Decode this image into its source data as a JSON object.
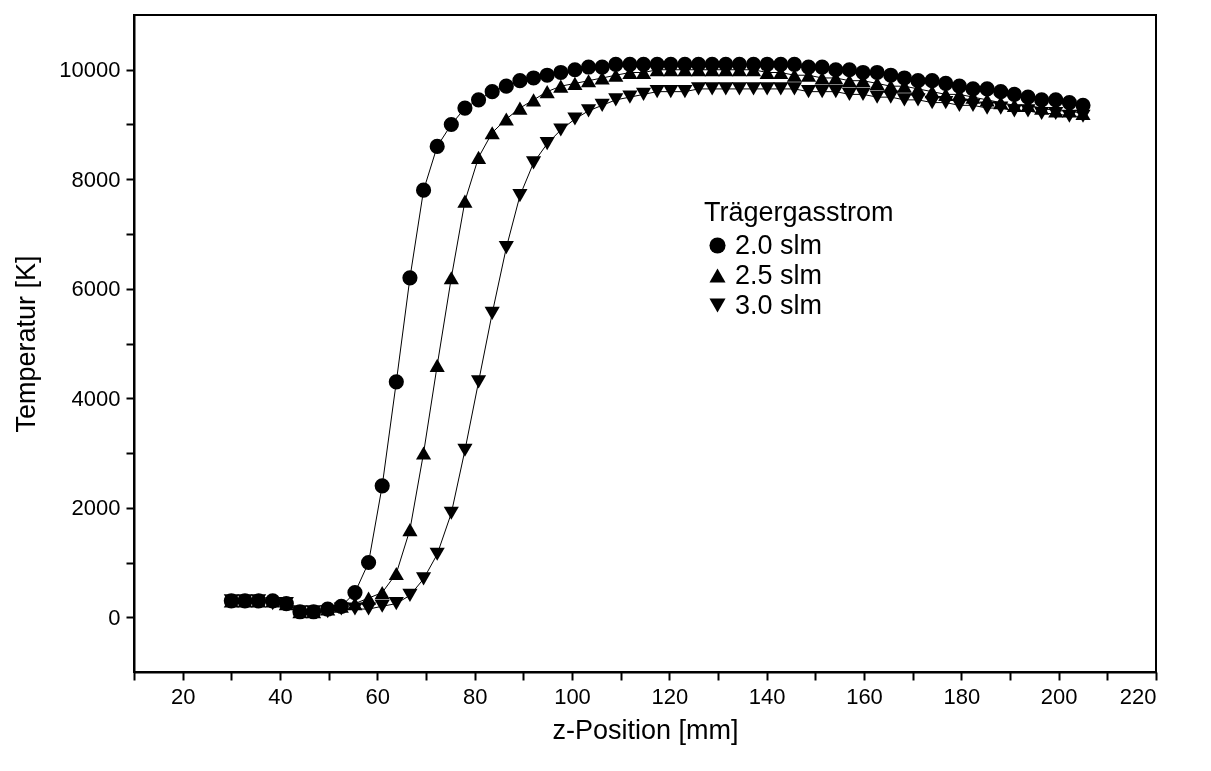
{
  "chart_data": {
    "type": "line",
    "xlabel": "z-Position [mm]",
    "ylabel": "Temperatur [K]",
    "legend_title": "Trägergasstrom",
    "legend": "right",
    "grid": false,
    "line_style": "solid",
    "x": [
      30,
      32.8,
      35.6,
      38.5,
      41.3,
      44.1,
      46.9,
      49.8,
      52.6,
      55.4,
      58.2,
      61.0,
      63.9,
      66.7,
      69.5,
      72.3,
      75.2,
      78.0,
      80.8,
      83.6,
      86.5,
      89.3,
      92.1,
      94.9,
      97.7,
      100.6,
      103.4,
      106.2,
      109.0,
      111.9,
      114.7,
      117.5,
      120.3,
      123.2,
      126.0,
      128.8,
      131.6,
      134.4,
      137.3,
      140.1,
      142.9,
      145.7,
      148.6,
      151.4,
      154.2,
      157.0,
      159.8,
      162.7,
      165.5,
      168.3,
      171.1,
      174.0,
      176.8,
      179.6,
      182.4,
      185.3,
      188.1,
      190.9,
      193.7,
      196.5,
      199.4,
      202.2,
      205.0
    ],
    "xlim": [
      10,
      220
    ],
    "xticks": [
      {
        "value": 10,
        "label": null
      },
      20,
      {
        "value": 30,
        "label": null
      },
      40,
      {
        "value": 50,
        "label": null
      },
      60,
      {
        "value": 70,
        "label": null
      },
      80,
      {
        "value": 90,
        "label": null
      },
      100,
      {
        "value": 110,
        "label": null
      },
      120,
      {
        "value": 130,
        "label": null
      },
      140,
      {
        "value": 150,
        "label": null
      },
      160,
      {
        "value": 170,
        "label": null
      },
      180,
      {
        "value": 190,
        "label": null
      },
      200,
      {
        "value": 210,
        "label": null
      },
      220
    ],
    "ylim": [
      -1000,
      11000
    ],
    "yticks": [
      0,
      {
        "value": 1000,
        "label": null
      },
      2000,
      {
        "value": 3000,
        "label": null
      },
      4000,
      {
        "value": 5000,
        "label": null
      },
      6000,
      {
        "value": 7000,
        "label": null
      },
      8000,
      {
        "value": 9000,
        "label": null
      },
      10000
    ],
    "series": [
      {
        "name": "2.0 slm",
        "color": "#000000",
        "marker": "circle",
        "values": [
          300,
          300,
          300,
          300,
          250,
          100,
          100,
          150,
          200,
          450,
          1000,
          2400,
          4300,
          6200,
          7800,
          8600,
          9000,
          9300,
          9450,
          9600,
          9700,
          9800,
          9850,
          9900,
          9950,
          10000,
          10050,
          10050,
          10100,
          10100,
          10100,
          10100,
          10100,
          10100,
          10100,
          10100,
          10100,
          10100,
          10100,
          10100,
          10100,
          10100,
          10050,
          10050,
          10000,
          10000,
          9950,
          9950,
          9900,
          9850,
          9800,
          9800,
          9750,
          9700,
          9650,
          9650,
          9600,
          9550,
          9500,
          9450,
          9450,
          9400,
          9350
        ]
      },
      {
        "name": "2.5 slm",
        "color": "#000000",
        "marker": "triangle-up",
        "values": [
          300,
          300,
          300,
          300,
          250,
          100,
          100,
          150,
          200,
          250,
          350,
          450,
          800,
          1600,
          3000,
          4600,
          6200,
          7600,
          8400,
          8850,
          9100,
          9300,
          9450,
          9600,
          9700,
          9750,
          9800,
          9850,
          9900,
          9950,
          9950,
          10000,
          10000,
          10000,
          10000,
          10000,
          10000,
          10000,
          10000,
          9950,
          9950,
          9900,
          9900,
          9850,
          9850,
          9800,
          9800,
          9750,
          9700,
          9700,
          9650,
          9600,
          9550,
          9550,
          9500,
          9450,
          9400,
          9350,
          9350,
          9300,
          9250,
          9250,
          9200
        ]
      },
      {
        "name": "3.0 slm",
        "color": "#000000",
        "marker": "triangle-down",
        "values": [
          300,
          300,
          300,
          250,
          250,
          100,
          100,
          100,
          150,
          150,
          150,
          200,
          250,
          400,
          700,
          1150,
          1900,
          3050,
          4300,
          5550,
          6750,
          7700,
          8300,
          8650,
          8900,
          9100,
          9250,
          9350,
          9450,
          9500,
          9550,
          9600,
          9600,
          9600,
          9650,
          9650,
          9650,
          9650,
          9650,
          9650,
          9650,
          9650,
          9600,
          9600,
          9600,
          9550,
          9550,
          9500,
          9500,
          9450,
          9450,
          9400,
          9400,
          9350,
          9350,
          9300,
          9300,
          9250,
          9250,
          9200,
          9200,
          9150,
          9150
        ]
      }
    ]
  }
}
